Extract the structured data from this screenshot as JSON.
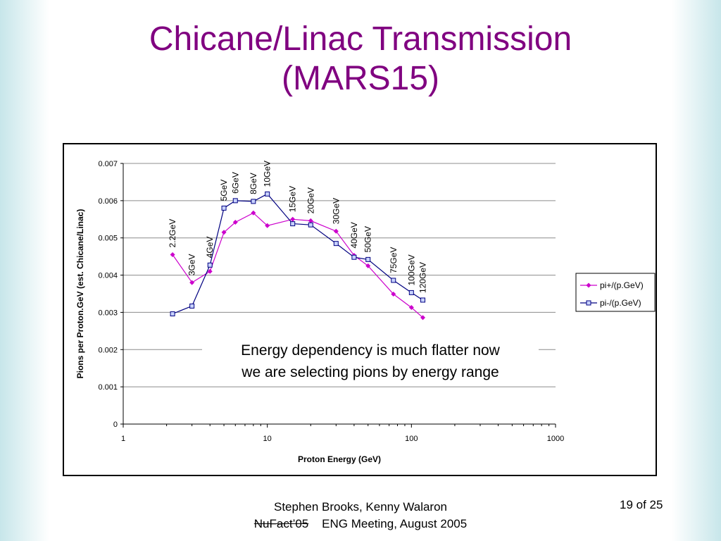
{
  "slide": {
    "title_line1": "Chicane/Linac Transmission",
    "title_line2": "(MARS15)",
    "footer_authors": "Stephen Brooks, Kenny Walaron",
    "footer_event_struck": "NuFact’05",
    "footer_event": "ENG Meeting, August 2005",
    "page_number": "19 of 25",
    "title_color": "#800080"
  },
  "chart_data": {
    "type": "line",
    "x_scale": "log",
    "xlim": [
      1,
      1000
    ],
    "ylim": [
      0,
      0.007
    ],
    "xlabel": "Proton Energy (GeV)",
    "ylabel": "Pions per Proton.GeV (est. Chicane/Linac)",
    "x_ticks": [
      "1",
      "10",
      "100",
      "1000"
    ],
    "y_ticks": [
      "0",
      "0.001",
      "0.002",
      "0.003",
      "0.004",
      "0.005",
      "0.006",
      "0.007"
    ],
    "grid": "horizontal",
    "legend_position": "right",
    "x": [
      2.2,
      3,
      4,
      5,
      6,
      8,
      10,
      15,
      20,
      30,
      40,
      50,
      75,
      100,
      120
    ],
    "series": [
      {
        "name": "pi+/(p.GeV)",
        "color": "#cc00cc",
        "marker": "diamond",
        "values": [
          0.00455,
          0.0038,
          0.0041,
          0.00515,
          0.00542,
          0.00567,
          0.00533,
          0.0055,
          0.00546,
          0.00518,
          0.00453,
          0.00425,
          0.00349,
          0.00313,
          0.00286
        ]
      },
      {
        "name": "pi-/(p.GeV)",
        "color": "#000080",
        "marker": "square",
        "values": [
          0.00296,
          0.00317,
          0.00427,
          0.0058,
          0.006,
          0.00598,
          0.00618,
          0.00538,
          0.00535,
          0.00485,
          0.00448,
          0.00442,
          0.00386,
          0.00353,
          0.00333
        ]
      }
    ],
    "point_labels": [
      "2.2GeV",
      "3GeV",
      "4GeV",
      "5GeV",
      "6GeV",
      "8GeV",
      "10GeV",
      "15GeV",
      "20GeV",
      "30GeV",
      "40GeV",
      "50GeV",
      "75GeV",
      "100GeV",
      "120GeV"
    ],
    "annotation_line1": "Energy dependency is much flatter now",
    "annotation_line2": "we are selecting pions by energy range"
  }
}
